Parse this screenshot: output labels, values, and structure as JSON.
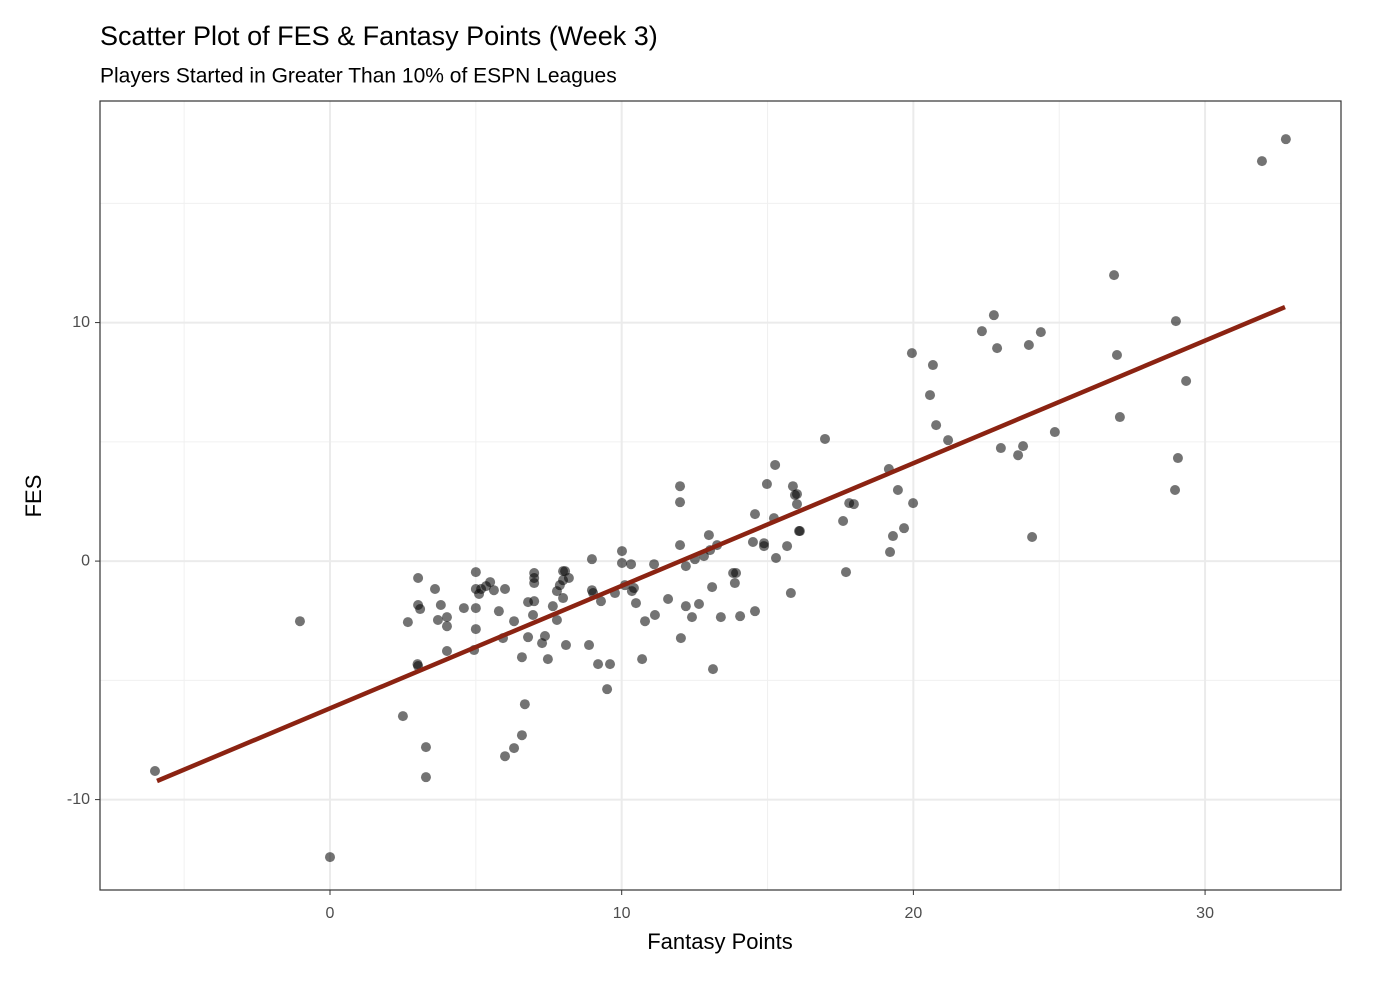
{
  "chart_data": {
    "type": "scatter",
    "title": "Scatter Plot of FES & Fantasy Points (Week 3)",
    "subtitle": "Players Started in Greater Than 10% of ESPN Leagues",
    "x_label": "Fantasy Points",
    "y_label": "FES",
    "xlim": [
      -7.885,
      34.66
    ],
    "ylim": [
      -13.79,
      19.29
    ],
    "xticks": [
      0,
      10,
      20,
      30
    ],
    "yticks": [
      -10,
      0,
      10
    ],
    "grid": true,
    "minor_grid": true,
    "point_color": "#000000",
    "x": [
      -6.0,
      -1.03,
      0,
      2.5,
      2.67,
      3.02,
      3.02,
      3.09,
      3.02,
      3.0,
      3.29,
      3.29,
      3.6,
      3.7,
      3.8,
      4.01,
      4.01,
      4.01,
      4.59,
      4.94,
      5.0,
      5.0,
      5.0,
      5.0,
      5.11,
      5.18,
      5.35,
      5.49,
      5.62,
      5.79,
      5.93,
      6.0,
      6.0,
      6.31,
      6.31,
      6.58,
      6.58,
      6.68,
      6.79,
      6.79,
      6.96,
      7.0,
      7.0,
      7.0,
      7.0,
      7.27,
      7.37,
      7.47,
      7.64,
      7.78,
      7.78,
      7.88,
      7.99,
      7.99,
      8.06,
      7.99,
      8.09,
      8.19,
      8.88,
      8.98,
      8.98,
      9.02,
      9.19,
      9.29,
      9.5,
      9.6,
      9.77,
      10.01,
      10.01,
      10.11,
      10.32,
      10.35,
      10.42,
      10.49,
      10.7,
      10.8,
      11.11,
      11.14,
      11.59,
      12.0,
      12.0,
      12.0,
      12.03,
      12.2,
      12.2,
      12.41,
      12.51,
      12.65,
      12.82,
      12.99,
      13.03,
      13.13,
      13.1,
      13.27,
      13.4,
      13.82,
      13.92,
      13.88,
      14.06,
      14.5,
      14.57,
      14.57,
      14.88,
      14.88,
      14.98,
      15.22,
      15.26,
      15.29,
      15.67,
      15.8,
      15.87,
      15.94,
      16.01,
      16.01,
      16.08,
      16.11,
      16.97,
      17.59,
      17.69,
      17.8,
      17.96,
      19.16,
      19.2,
      19.3,
      19.47,
      19.68,
      19.95,
      19.99,
      20.57,
      20.67,
      20.78,
      21.19,
      22.35,
      22.76,
      22.87,
      23.0,
      23.59,
      23.76,
      23.96,
      24.07,
      24.37,
      24.85,
      26.88,
      26.98,
      27.08,
      29.0,
      28.97,
      29.07,
      29.35,
      31.95,
      32.77
    ],
    "values": [
      -8.8,
      -2.52,
      -12.41,
      -6.5,
      -2.56,
      -0.71,
      -1.84,
      -2.01,
      -4.4,
      -4.32,
      -7.8,
      -9.06,
      -1.17,
      -2.47,
      -1.84,
      -2.35,
      -2.73,
      -3.77,
      -1.97,
      -3.73,
      -0.46,
      -1.17,
      -1.97,
      -2.85,
      -1.38,
      -1.17,
      -1.05,
      -0.88,
      -1.22,
      -2.1,
      -3.23,
      -8.18,
      -1.17,
      -2.52,
      -7.84,
      -4.03,
      -7.3,
      -6.0,
      -3.19,
      -1.72,
      -2.26,
      -0.5,
      -0.71,
      -0.92,
      -1.68,
      -3.44,
      -3.14,
      -4.11,
      -1.89,
      -1.26,
      -2.47,
      -1.01,
      -0.8,
      -0.42,
      -0.42,
      -1.55,
      -3.52,
      -0.71,
      -3.52,
      0.08,
      -1.22,
      -1.34,
      -4.32,
      -1.68,
      -5.37,
      -4.32,
      -1.34,
      0.42,
      -0.08,
      -1.01,
      -0.13,
      -1.26,
      -1.13,
      -1.76,
      -4.11,
      -2.52,
      -0.13,
      -2.26,
      -1.59,
      3.14,
      2.47,
      0.67,
      -3.23,
      -0.21,
      -1.89,
      -2.35,
      0.08,
      -1.8,
      0.21,
      1.09,
      0.46,
      -4.53,
      -1.09,
      0.67,
      -2.35,
      -0.5,
      -0.5,
      -0.92,
      -2.31,
      0.8,
      -2.1,
      1.97,
      0.63,
      0.75,
      3.23,
      1.8,
      4.03,
      0.13,
      0.63,
      -1.34,
      3.14,
      2.77,
      2.81,
      2.39,
      1.26,
      1.26,
      5.12,
      1.68,
      -0.46,
      2.43,
      2.39,
      3.86,
      0.38,
      1.05,
      2.98,
      1.38,
      8.72,
      2.43,
      6.96,
      8.22,
      5.7,
      5.07,
      9.64,
      10.31,
      8.93,
      4.74,
      4.44,
      4.82,
      9.06,
      1.01,
      9.6,
      5.41,
      11.99,
      8.64,
      6.04,
      10.06,
      2.98,
      4.32,
      7.55,
      16.77,
      17.69
    ],
    "fit": {
      "color": "#8b2312",
      "x": [
        -5.93,
        32.74
      ],
      "values": [
        -9.22,
        10.65
      ]
    }
  }
}
